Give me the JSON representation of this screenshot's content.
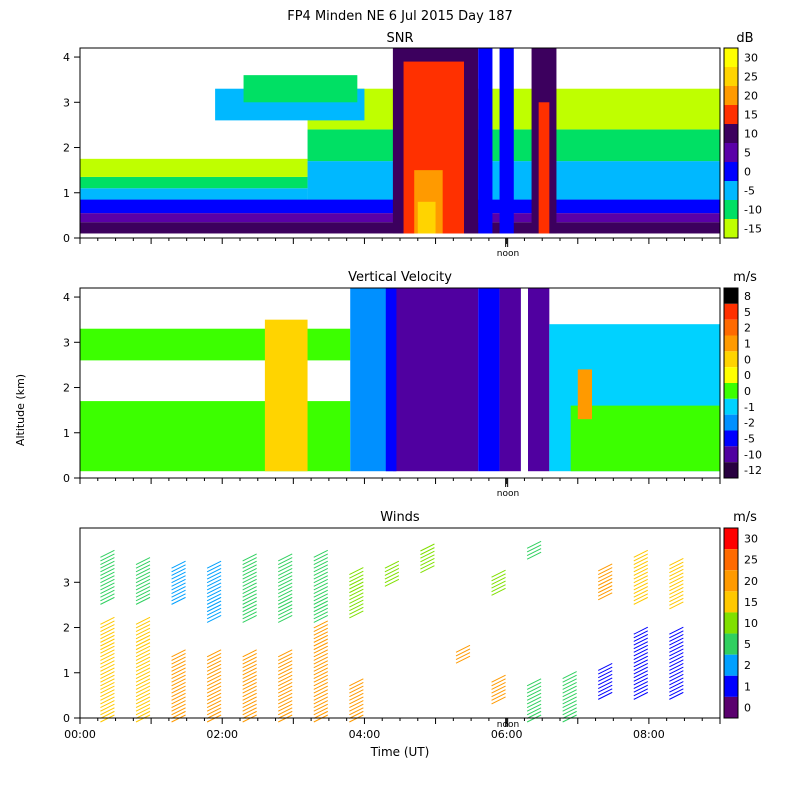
{
  "figure_title": "FP4 Minden NE   6 Jul 2015 Day 187",
  "shared_ylabel": "Altitude (km)",
  "colors": {
    "axis": "#000000",
    "background": "#ffffff"
  },
  "chart_data": [
    {
      "type": "heatmap",
      "title": "SNR",
      "unit": "dB",
      "xlabel": "",
      "ylabel": "",
      "xlim_hours": [
        0,
        9
      ],
      "ylim_km": [
        0,
        4.2
      ],
      "yticks": [
        0,
        1,
        2,
        3,
        4
      ],
      "marker_label": "noon",
      "marker_hour": 6.0,
      "colorbar_labels": [
        "30",
        "25",
        "20",
        "15",
        "10",
        "5",
        "0",
        "-5",
        "-10",
        "-15"
      ],
      "colorbar_colors": [
        "#ffff00",
        "#ffd400",
        "#ff9a00",
        "#ff3000",
        "#3c005e",
        "#5a00a8",
        "#0000ff",
        "#00b8ff",
        "#00e064",
        "#bfff00"
      ],
      "regions": [
        {
          "x": [
            0.0,
            9.0
          ],
          "y": [
            0.1,
            0.35
          ],
          "color": "#3c005e"
        },
        {
          "x": [
            0.0,
            9.0
          ],
          "y": [
            0.35,
            0.55
          ],
          "color": "#5a00a8"
        },
        {
          "x": [
            0.0,
            9.0
          ],
          "y": [
            0.55,
            0.85
          ],
          "color": "#0000ff"
        },
        {
          "x": [
            0.0,
            3.2
          ],
          "y": [
            0.85,
            1.1
          ],
          "color": "#00b8ff"
        },
        {
          "x": [
            0.0,
            3.2
          ],
          "y": [
            1.1,
            1.35
          ],
          "color": "#00e064"
        },
        {
          "x": [
            0.0,
            3.2
          ],
          "y": [
            1.35,
            1.75
          ],
          "color": "#bfff00"
        },
        {
          "x": [
            3.2,
            9.0
          ],
          "y": [
            0.85,
            1.7
          ],
          "color": "#00b8ff"
        },
        {
          "x": [
            3.2,
            9.0
          ],
          "y": [
            1.7,
            2.4
          ],
          "color": "#00e064"
        },
        {
          "x": [
            3.2,
            9.0
          ],
          "y": [
            2.4,
            3.3
          ],
          "color": "#bfff00"
        },
        {
          "x": [
            1.9,
            4.0
          ],
          "y": [
            2.6,
            3.3
          ],
          "color": "#00b8ff"
        },
        {
          "x": [
            2.3,
            3.9
          ],
          "y": [
            3.0,
            3.6
          ],
          "color": "#00e064"
        },
        {
          "x": [
            4.4,
            5.6
          ],
          "y": [
            0.1,
            4.2
          ],
          "color": "#3c005e"
        },
        {
          "x": [
            4.55,
            5.4
          ],
          "y": [
            0.1,
            3.9
          ],
          "color": "#ff3000"
        },
        {
          "x": [
            4.7,
            5.1
          ],
          "y": [
            0.1,
            1.5
          ],
          "color": "#ff9a00"
        },
        {
          "x": [
            4.75,
            5.0
          ],
          "y": [
            0.1,
            0.8
          ],
          "color": "#ffd400"
        },
        {
          "x": [
            5.6,
            5.8
          ],
          "y": [
            0.1,
            4.2
          ],
          "color": "#0000ff"
        },
        {
          "x": [
            5.9,
            6.1
          ],
          "y": [
            0.1,
            4.2
          ],
          "color": "#0000ff"
        },
        {
          "x": [
            6.35,
            6.7
          ],
          "y": [
            0.1,
            4.2
          ],
          "color": "#3c005e"
        },
        {
          "x": [
            6.45,
            6.6
          ],
          "y": [
            0.1,
            3.0
          ],
          "color": "#ff3000"
        }
      ]
    },
    {
      "type": "heatmap",
      "title": "Vertical Velocity",
      "unit": "m/s",
      "xlabel": "",
      "ylabel": "Altitude (km)",
      "xlim_hours": [
        0,
        9
      ],
      "ylim_km": [
        0,
        4.2
      ],
      "yticks": [
        0,
        1,
        2,
        3,
        4
      ],
      "marker_label": "noon",
      "marker_hour": 6.0,
      "colorbar_labels": [
        "8",
        "5",
        "2",
        "1",
        "0",
        "0",
        "0",
        "-1",
        "-2",
        "-5",
        "-10",
        "-12"
      ],
      "colorbar_colors": [
        "#000000",
        "#ff3000",
        "#ff6a00",
        "#ff9a00",
        "#ffd400",
        "#ffff00",
        "#3cff00",
        "#00d2ff",
        "#0090ff",
        "#0000ff",
        "#5000a0",
        "#280040"
      ],
      "regions": [
        {
          "x": [
            0.0,
            3.8
          ],
          "y": [
            0.15,
            1.7
          ],
          "color": "#3cff00"
        },
        {
          "x": [
            0.0,
            3.8
          ],
          "y": [
            2.6,
            3.3
          ],
          "color": "#3cff00"
        },
        {
          "x": [
            2.6,
            3.2
          ],
          "y": [
            0.15,
            3.5
          ],
          "color": "#ffd400"
        },
        {
          "x": [
            3.8,
            4.4
          ],
          "y": [
            0.15,
            4.2
          ],
          "color": "#0090ff"
        },
        {
          "x": [
            4.4,
            5.6
          ],
          "y": [
            0.15,
            4.2
          ],
          "color": "#5000a0"
        },
        {
          "x": [
            4.3,
            4.45
          ],
          "y": [
            0.15,
            4.2
          ],
          "color": "#0000ff"
        },
        {
          "x": [
            5.6,
            5.9
          ],
          "y": [
            0.15,
            4.2
          ],
          "color": "#0000ff"
        },
        {
          "x": [
            5.9,
            6.2
          ],
          "y": [
            0.15,
            4.2
          ],
          "color": "#5000a0"
        },
        {
          "x": [
            6.3,
            6.6
          ],
          "y": [
            0.15,
            4.2
          ],
          "color": "#5000a0"
        },
        {
          "x": [
            6.6,
            9.0
          ],
          "y": [
            0.15,
            3.4
          ],
          "color": "#00d2ff"
        },
        {
          "x": [
            6.9,
            9.0
          ],
          "y": [
            0.15,
            1.6
          ],
          "color": "#3cff00"
        },
        {
          "x": [
            7.0,
            7.2
          ],
          "y": [
            1.3,
            2.4
          ],
          "color": "#ff9a00"
        }
      ]
    },
    {
      "type": "scatter",
      "title": "Winds",
      "unit": "m/s",
      "xlabel": "Time (UT)",
      "ylabel": "",
      "xlim_hours": [
        0,
        9
      ],
      "ylim_km": [
        0,
        4.2
      ],
      "xtick_labels": [
        "00:00",
        "02:00",
        "04:00",
        "06:00",
        "08:00"
      ],
      "xtick_hours": [
        0,
        2,
        4,
        6,
        8
      ],
      "yticks": [
        0,
        1,
        2,
        3
      ],
      "marker_label": "noon",
      "marker_hour": 6.0,
      "colorbar_labels": [
        "30",
        "25",
        "20",
        "15",
        "10",
        "5",
        "2",
        "1",
        "0"
      ],
      "colorbar_colors": [
        "#ff0000",
        "#ff6a00",
        "#ff9a00",
        "#ffc800",
        "#80e000",
        "#30d060",
        "#00a0ff",
        "#0000ff",
        "#5a006e"
      ],
      "barb_columns": [
        {
          "hour": 0.4,
          "low": [
            0.0,
            2.2
          ],
          "high": [
            2.6,
            3.7
          ],
          "low_color": "#ffc800",
          "high_color": "#30d060"
        },
        {
          "hour": 0.9,
          "low": [
            0.0,
            2.2
          ],
          "high": [
            2.6,
            3.5
          ],
          "low_color": "#ffc800",
          "high_color": "#30d060"
        },
        {
          "hour": 1.4,
          "low": [
            0.0,
            1.5
          ],
          "high": [
            2.6,
            3.4
          ],
          "low_color": "#ff9a00",
          "high_color": "#00a0ff"
        },
        {
          "hour": 1.9,
          "low": [
            0.0,
            1.5
          ],
          "high": [
            2.2,
            3.4
          ],
          "low_color": "#ff9a00",
          "high_color": "#00a0ff"
        },
        {
          "hour": 2.4,
          "low": [
            0.0,
            1.5
          ],
          "high": [
            2.2,
            3.6
          ],
          "low_color": "#ff9a00",
          "high_color": "#30d060"
        },
        {
          "hour": 2.9,
          "low": [
            0.0,
            1.5
          ],
          "high": [
            2.2,
            3.6
          ],
          "low_color": "#ff9a00",
          "high_color": "#30d060"
        },
        {
          "hour": 3.4,
          "low": [
            0.0,
            2.1
          ],
          "high": [
            2.2,
            3.7
          ],
          "low_color": "#ff9a00",
          "high_color": "#30d060"
        },
        {
          "hour": 3.9,
          "low": [
            0.0,
            0.8
          ],
          "high": [
            2.3,
            3.3
          ],
          "low_color": "#ff9a00",
          "high_color": "#80e000"
        },
        {
          "hour": 4.4,
          "low": null,
          "high": [
            3.0,
            3.4
          ],
          "low_color": "#ff9a00",
          "high_color": "#80e000"
        },
        {
          "hour": 4.9,
          "low": null,
          "high": [
            3.3,
            3.8
          ],
          "low_color": "#ff9a00",
          "high_color": "#80e000"
        },
        {
          "hour": 5.4,
          "low": [
            1.3,
            1.6
          ],
          "high": null,
          "low_color": "#ff9a00",
          "high_color": "#80e000"
        },
        {
          "hour": 5.9,
          "low": [
            0.4,
            0.9
          ],
          "high": [
            2.8,
            3.2
          ],
          "low_color": "#ff9a00",
          "high_color": "#80e000"
        },
        {
          "hour": 6.4,
          "low": [
            0.0,
            0.8
          ],
          "high": [
            3.6,
            3.9
          ],
          "low_color": "#30d060",
          "high_color": "#30d060"
        },
        {
          "hour": 6.9,
          "low": [
            0.0,
            1.0
          ],
          "high": null,
          "low_color": "#30d060",
          "high_color": "#30d060"
        },
        {
          "hour": 7.4,
          "low": [
            0.5,
            1.2
          ],
          "high": [
            2.7,
            3.4
          ],
          "low_color": "#0000ff",
          "high_color": "#ff9a00"
        },
        {
          "hour": 7.9,
          "low": [
            0.5,
            2.0
          ],
          "high": [
            2.6,
            3.7
          ],
          "low_color": "#0000ff",
          "high_color": "#ffc800"
        },
        {
          "hour": 8.4,
          "low": [
            0.5,
            2.0
          ],
          "high": [
            2.5,
            3.5
          ],
          "low_color": "#0000ff",
          "high_color": "#ffc800"
        }
      ]
    }
  ]
}
